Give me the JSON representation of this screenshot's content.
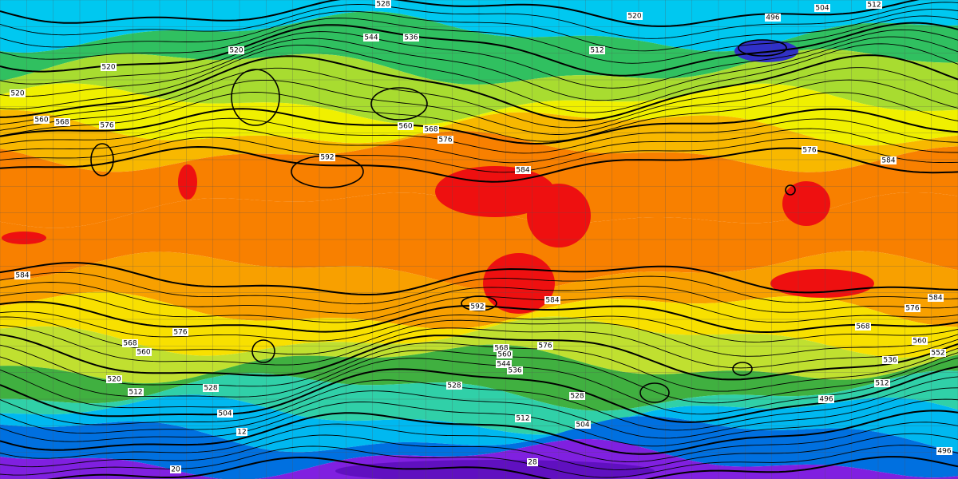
{
  "contour_labels": [
    "528",
    "520",
    "496",
    "504",
    "512",
    "544",
    "536",
    "520",
    "512",
    "520",
    "520",
    "560",
    "568",
    "576",
    "560",
    "568",
    "576",
    "592",
    "584",
    "584",
    "576",
    "584",
    "592",
    "584",
    "576",
    "584",
    "576",
    "568",
    "560",
    "568",
    "560",
    "552",
    "536",
    "568",
    "560",
    "576",
    "544",
    "536",
    "528",
    "528",
    "520",
    "512",
    "528",
    "512",
    "504",
    "504",
    "496",
    "512",
    "496",
    "12",
    "20",
    "28"
  ]
}
